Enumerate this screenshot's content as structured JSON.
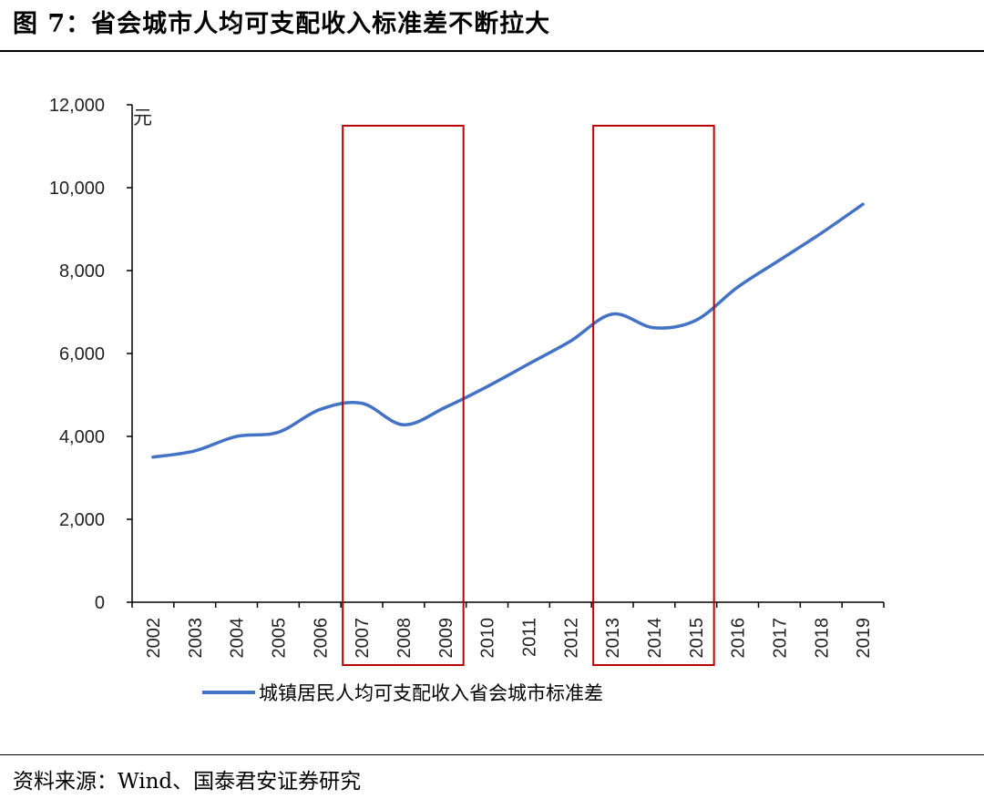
{
  "figure": {
    "title": "图 7：省会城市人均可支配收入标准差不断拉大",
    "source": "资料来源：Wind、国泰君安证券研究"
  },
  "colors": {
    "series": "#4472c4",
    "highlight": "#c00000",
    "axis": "#000000"
  },
  "chart_data": {
    "type": "line",
    "title": "",
    "xlabel": "",
    "ylabel": "元",
    "ylim": [
      0,
      12000
    ],
    "yticks": [
      0,
      2000,
      4000,
      6000,
      8000,
      10000,
      12000
    ],
    "ytick_labels": [
      "0",
      "2,000",
      "4,000",
      "6,000",
      "8,000",
      "10,000",
      "12,000"
    ],
    "categories": [
      "2002",
      "2003",
      "2004",
      "2005",
      "2006",
      "2007",
      "2008",
      "2009",
      "2010",
      "2011",
      "2012",
      "2013",
      "2014",
      "2015",
      "2016",
      "2017",
      "2018",
      "2019"
    ],
    "series": [
      {
        "name": "城镇居民人均可支配收入省会城市标准差",
        "values": [
          3500,
          3650,
          4000,
          4100,
          4650,
          4800,
          4280,
          4700,
          5200,
          5750,
          6300,
          6950,
          6620,
          6800,
          7600,
          8250,
          8900,
          9600
        ]
      }
    ],
    "legend_position": "bottom",
    "highlights": [
      {
        "from": "2007",
        "to": "2009"
      },
      {
        "from": "2013",
        "to": "2015"
      }
    ]
  }
}
